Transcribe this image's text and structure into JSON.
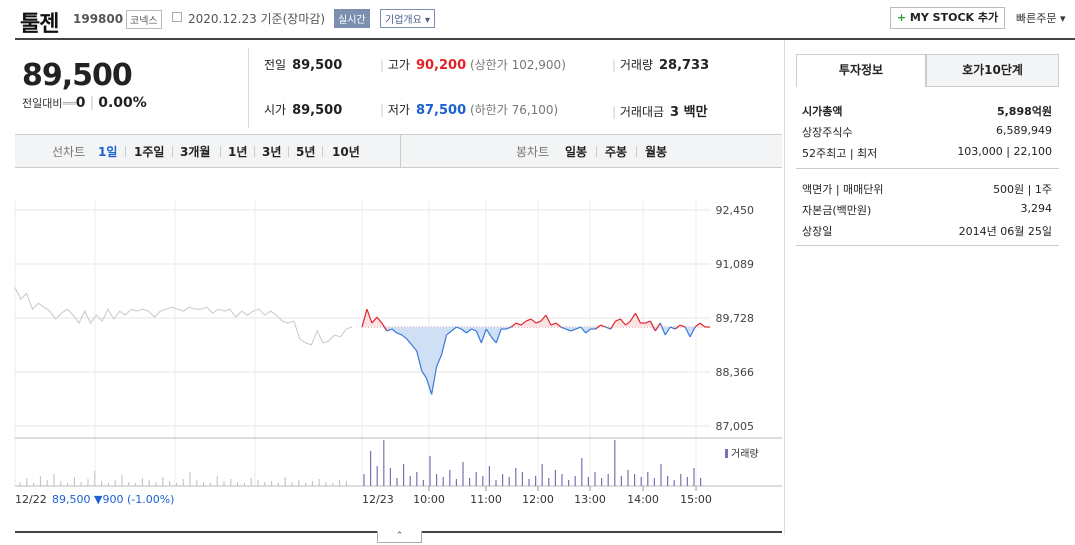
{
  "header": {
    "name": "툴젠",
    "code": "199800",
    "market": "코넥스",
    "date_text": "2020.12.23 기준(장마감)",
    "realtime_label": "실시간",
    "corp_label": "기업개요",
    "mystock_label": "MY STOCK 추가",
    "quick_order": "빠른주문"
  },
  "price": {
    "current": "89,500",
    "diff_label": "전일대비",
    "diff_value": "0",
    "diff_rate": "0.00%"
  },
  "quote": {
    "prev_label": "전일",
    "prev": "89,500",
    "high_label": "고가",
    "high": "90,200",
    "upper_limit": "(상한가 102,900)",
    "volume_label": "거래량",
    "volume": "28,733",
    "open_label": "시가",
    "open": "89,500",
    "low_label": "저가",
    "low": "87,500",
    "lower_limit": "(하한가 76,100)",
    "amount_label": "거래대금",
    "amount": "3 백만"
  },
  "periods": {
    "line_label": "선차트",
    "line_items": [
      "1일",
      "1주일",
      "3개월",
      "1년",
      "3년",
      "5년",
      "10년"
    ],
    "candle_label": "봉차트",
    "candle_items": [
      "일봉",
      "주봉",
      "월봉"
    ]
  },
  "invest": {
    "tab_on": "투자정보",
    "tab_off": "호가10단계",
    "rows1": [
      {
        "label": "시가총액",
        "value": "5,898억원"
      },
      {
        "label": "상장주식수",
        "value": "6,589,949"
      },
      {
        "label": "52주최고 | 최저",
        "value": "103,000 | 22,100"
      }
    ],
    "rows2": [
      {
        "label": "액면가 | 매매단위",
        "value": "500원 | 1주"
      },
      {
        "label": "자본금(백만원)",
        "value": "3,294"
      },
      {
        "label": "상장일",
        "value": "2014년 06월 25일"
      }
    ]
  },
  "chart_data": {
    "type": "line",
    "yticks": [
      "92,450",
      "91,089",
      "89,728",
      "88,366",
      "87,005"
    ],
    "ylim": [
      87005,
      92450
    ],
    "baseline": 89500,
    "volume_legend": "거래량",
    "prev_day_label": "12/22",
    "prev_day_summary": "89,500 ▼900 (-1.00%)",
    "day_label": "12/23",
    "xticks": [
      "10:00",
      "11:00",
      "12:00",
      "13:00",
      "14:00",
      "15:00"
    ],
    "prev_day_series": [
      90500,
      90200,
      90350,
      89950,
      90100,
      90000,
      89900,
      89700,
      89850,
      89950,
      89800,
      89600,
      89900,
      89600,
      89800,
      89650,
      89950,
      89700,
      89900,
      89800,
      89950,
      89900,
      89950,
      89900,
      89750,
      89900,
      89950,
      90000,
      89950,
      89900,
      90000,
      89950,
      89950,
      90000,
      89850,
      89950,
      89900,
      89950,
      89750,
      89900,
      89800,
      89900,
      89950,
      89800,
      89900,
      89800,
      89650,
      89600,
      89650,
      89200,
      89100,
      89050,
      89400,
      89100,
      89150,
      89300,
      89250,
      89450,
      89500
    ],
    "today_series": [
      89500,
      89950,
      89600,
      89750,
      89600,
      89400,
      89450,
      89350,
      89300,
      89200,
      89050,
      88900,
      88400,
      88200,
      87800,
      88500,
      88800,
      89300,
      89400,
      89500,
      89450,
      89350,
      89450,
      89400,
      89100,
      89450,
      89250,
      89100,
      89450,
      89450,
      89500,
      89600,
      89550,
      89650,
      89700,
      89600,
      89650,
      89800,
      89550,
      89600,
      89500,
      89450,
      89400,
      89450,
      89500,
      89350,
      89450,
      89450,
      89550,
      89500,
      89450,
      89650,
      89700,
      89550,
      89650,
      89850,
      89600,
      89600,
      89650,
      89400,
      89600,
      89300,
      89500,
      89450,
      89550,
      89500,
      89250,
      89500,
      89600,
      89500,
      89500
    ]
  }
}
